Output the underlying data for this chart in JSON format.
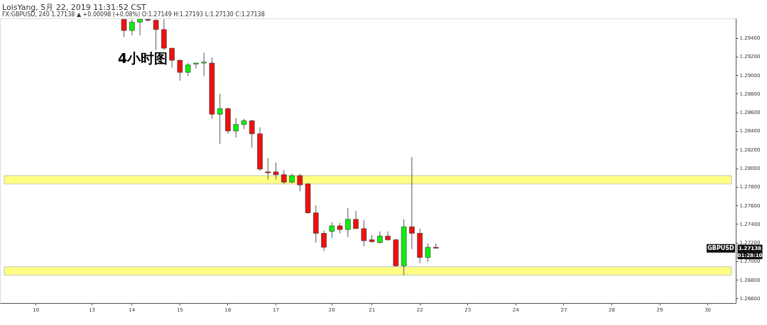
{
  "chart_data": {
    "type": "candlestick",
    "title": "LoisYang, 5月 22, 2019 11:31:52 CST",
    "subtitle": "FX:GBPUSD, 240 1.27138 ▲ +0.00098 (+0.08%) O:1.27149 H:1.27193 L:1.27130 C:1.27138",
    "categories": [
      null,
      null,
      null,
      null,
      "10",
      null,
      null,
      null,
      null,
      null,
      null,
      "13",
      null,
      null,
      null,
      null,
      "14",
      null,
      null,
      null,
      null,
      null,
      "15",
      null,
      null,
      null,
      null,
      null,
      "16",
      null,
      null,
      null,
      null,
      null,
      "17",
      null,
      null,
      null,
      null,
      null,
      null,
      "20",
      null,
      null,
      null,
      null,
      "21",
      null,
      null,
      null,
      null,
      null,
      "22",
      null,
      null,
      null,
      null,
      null,
      "23",
      null,
      null,
      null,
      null,
      null,
      "24",
      null,
      null,
      null,
      null,
      null,
      "27",
      null,
      null,
      null,
      null,
      null,
      "28",
      null,
      null,
      null,
      null,
      null,
      "29",
      null,
      null,
      null,
      null,
      null,
      "30",
      null,
      null,
      null
    ],
    "ohlc": [
      null,
      null,
      null,
      null,
      null,
      null,
      null,
      null,
      null,
      null,
      null,
      null,
      null,
      null,
      null,
      [
        1.296,
        1.296,
        1.2941,
        1.2948
      ],
      [
        1.2948,
        1.296,
        1.2943,
        1.2957
      ],
      [
        1.2957,
        1.296,
        1.2943,
        1.296
      ],
      [
        1.296,
        1.296,
        1.2958,
        1.2959
      ],
      [
        1.2959,
        1.296,
        1.2927,
        1.2949
      ],
      [
        1.2949,
        1.296,
        1.2927,
        1.2929
      ],
      [
        1.2929,
        1.2929,
        1.2908,
        1.2916
      ],
      [
        1.2916,
        1.2917,
        1.2894,
        1.2903
      ],
      [
        1.2903,
        1.2913,
        1.2899,
        1.2911
      ],
      [
        1.2912,
        1.2913,
        1.2907,
        1.2913
      ],
      [
        1.2913,
        1.2924,
        1.2899,
        1.2914
      ],
      [
        1.2913,
        1.2919,
        1.2853,
        1.2858
      ],
      [
        1.2858,
        1.288,
        1.2826,
        1.2864
      ],
      [
        1.2864,
        1.2865,
        1.2837,
        1.284
      ],
      [
        1.284,
        1.2854,
        1.2833,
        1.2847
      ],
      [
        1.2847,
        1.2853,
        1.2842,
        1.2851
      ],
      [
        1.2851,
        1.2852,
        1.2822,
        1.2837
      ],
      [
        1.2837,
        1.2844,
        1.2797,
        1.2799
      ],
      [
        1.2796,
        1.2811,
        1.2788,
        1.2795
      ],
      [
        1.2796,
        1.2806,
        1.2788,
        1.2793
      ],
      [
        1.2793,
        1.2798,
        1.2783,
        1.2785
      ],
      [
        1.2785,
        1.2794,
        1.2784,
        1.2792
      ],
      [
        1.2792,
        1.2794,
        1.2775,
        1.2782
      ],
      [
        1.2783,
        1.2784,
        1.2751,
        1.2752
      ],
      [
        1.2752,
        1.276,
        1.272,
        1.273
      ],
      [
        1.273,
        1.2733,
        1.2711,
        1.2715
      ],
      [
        1.2732,
        1.2742,
        1.2725,
        1.2738
      ],
      [
        1.2738,
        1.2741,
        1.273,
        1.2734
      ],
      [
        1.2734,
        1.2757,
        1.2726,
        1.2745
      ],
      [
        1.2745,
        1.2754,
        1.2735,
        1.2735
      ],
      [
        1.2735,
        1.2744,
        1.2716,
        1.2722
      ],
      [
        1.2723,
        1.2728,
        1.272,
        1.2721
      ],
      [
        1.272,
        1.2732,
        1.2719,
        1.2727
      ],
      [
        1.2727,
        1.2732,
        1.2722,
        1.2723
      ],
      [
        1.2723,
        1.2724,
        1.2694,
        1.2695
      ],
      [
        1.2695,
        1.2745,
        1.2685,
        1.2737
      ],
      [
        1.2737,
        1.2812,
        1.2713,
        1.273
      ],
      [
        1.273,
        1.2735,
        1.2698,
        1.2704
      ],
      [
        1.2704,
        1.2719,
        1.2699,
        1.2715
      ],
      [
        1.2715,
        1.2719,
        1.2714,
        1.2714
      ],
      null,
      null,
      null,
      null,
      null,
      null,
      null,
      null,
      null,
      null,
      null,
      null,
      null,
      null,
      null,
      null,
      null,
      null,
      null,
      null,
      null,
      null,
      null,
      null,
      null,
      null,
      null,
      null,
      null,
      null,
      null,
      null,
      null,
      null,
      null,
      null,
      null
    ],
    "colors": [
      null,
      null,
      null,
      null,
      null,
      null,
      null,
      null,
      null,
      null,
      null,
      null,
      null,
      null,
      null,
      "#ee1111",
      "#11ee11",
      "#11ee11",
      "#ee1111",
      "#ee1111",
      "#ee1111",
      "#ee1111",
      "#ee1111",
      "#11ee11",
      "#11ee11",
      "#11ee11",
      "#ee1111",
      "#11ee11",
      "#ee1111",
      "#11ee11",
      "#11ee11",
      "#ee1111",
      "#ee1111",
      "#ee1111",
      "#ee1111",
      "#ee1111",
      "#11ee11",
      "#ee1111",
      "#ee1111",
      "#ee1111",
      "#ee1111",
      "#11ee11",
      "#ee1111",
      "#11ee11",
      "#ee1111",
      "#ee1111",
      "#ee1111",
      "#11ee11",
      "#ee1111",
      "#ee1111",
      "#11ee11",
      "#ee1111",
      "#ee1111",
      "#11ee11",
      "#ee1111",
      null,
      null,
      null,
      null,
      null,
      null,
      null,
      null,
      null,
      null,
      null,
      null,
      null,
      null,
      null,
      null,
      null,
      null,
      null,
      null,
      null,
      null,
      null,
      null,
      null,
      null,
      null,
      null,
      null,
      null,
      null,
      null,
      null,
      null,
      null,
      null,
      null
    ],
    "ylim": [
      1.2655,
      1.2961
    ],
    "yticks": [
      {
        "value": 1.266,
        "label": "1.26600"
      },
      {
        "value": 1.268,
        "label": "1.26800"
      },
      {
        "value": 1.27,
        "label": "1.27000"
      },
      {
        "value": 1.272,
        "label": "1.27200"
      },
      {
        "value": 1.274,
        "label": "1.27400"
      },
      {
        "value": 1.276,
        "label": "1.27600"
      },
      {
        "value": 1.278,
        "label": "1.27800"
      },
      {
        "value": 1.28,
        "label": "1.28000"
      },
      {
        "value": 1.282,
        "label": "1.28200"
      },
      {
        "value": 1.284,
        "label": "1.28400"
      },
      {
        "value": 1.286,
        "label": "1.28600"
      },
      {
        "value": 1.288,
        "label": "1.28800"
      },
      {
        "value": 1.29,
        "label": "1.29000"
      },
      {
        "value": 1.292,
        "label": "1.29200"
      },
      {
        "value": 1.294,
        "label": "1.29400"
      }
    ],
    "bands": [
      {
        "axis": "y",
        "from": 1.2783,
        "to": 1.2792,
        "color": "#ffff33"
      },
      {
        "axis": "y",
        "from": 1.2685,
        "to": 1.2694,
        "color": "#ffff33"
      }
    ],
    "annotations": [
      "4小时图",
      {
        "text": "GBPUSD",
        "y": 1.27138
      },
      "1.27138",
      "01:28:10"
    ],
    "grid": false
  }
}
